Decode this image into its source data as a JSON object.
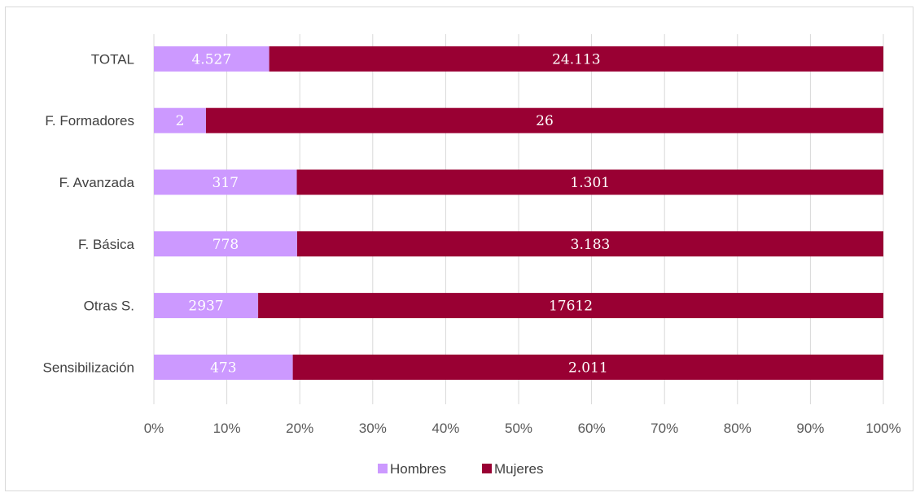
{
  "chart_data": {
    "type": "bar",
    "orientation": "horizontal",
    "stacked": "percent",
    "categories": [
      "TOTAL",
      "F. Formadores",
      "F. Avanzada",
      "F. Básica",
      "Otras S.",
      "Sensibilización"
    ],
    "series": [
      {
        "name": "Hombres",
        "color": "#cc99ff",
        "values": [
          4527,
          2,
          317,
          778,
          2937,
          473
        ],
        "labels": [
          "4.527",
          "2",
          "317",
          "778",
          "2937",
          "473"
        ]
      },
      {
        "name": "Mujeres",
        "color": "#990033",
        "values": [
          24113,
          26,
          1301,
          3183,
          17612,
          2011
        ],
        "labels": [
          "24.113",
          "26",
          "1.301",
          "3.183",
          "17612",
          "2.011"
        ]
      }
    ],
    "xticks": [
      "0%",
      "10%",
      "20%",
      "30%",
      "40%",
      "50%",
      "60%",
      "70%",
      "80%",
      "90%",
      "100%"
    ],
    "xlim": [
      0,
      100
    ],
    "grid": true,
    "legend": "bottom"
  }
}
